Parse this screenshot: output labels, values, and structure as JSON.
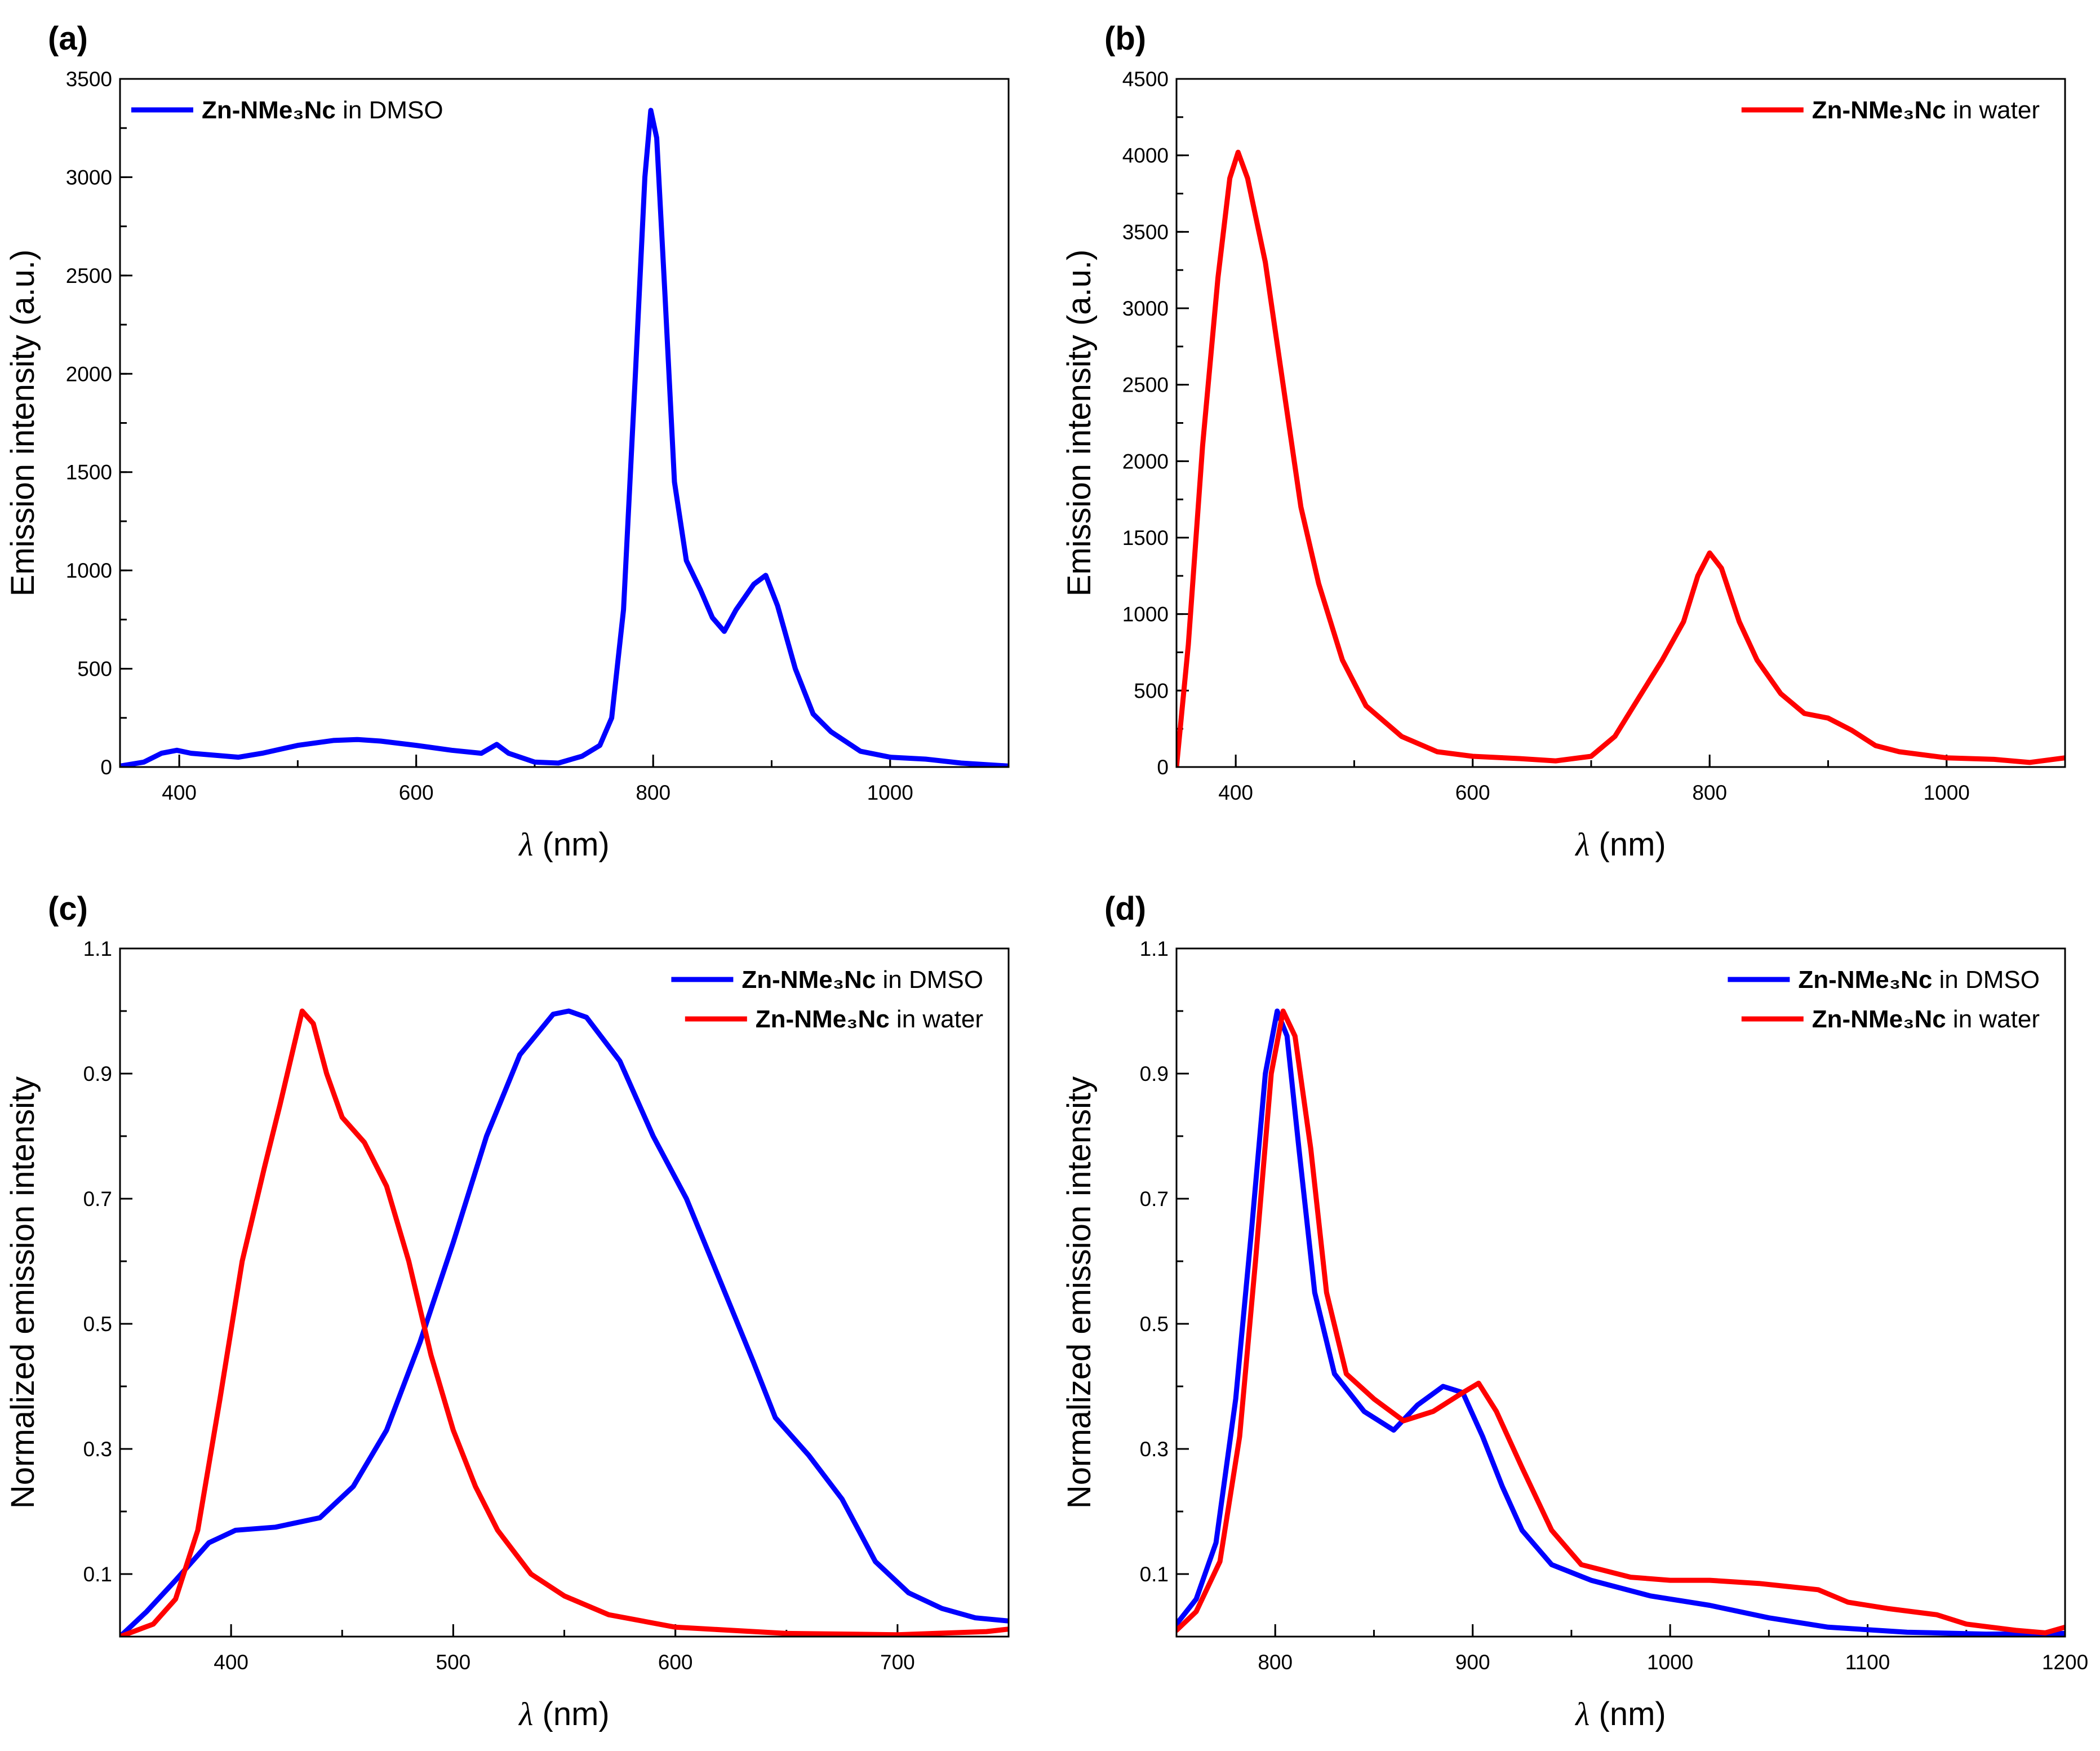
{
  "figure": {
    "panels": [
      "(a)",
      "(b)",
      "(c)",
      "(d)"
    ]
  },
  "chart_data": [
    {
      "id": "a",
      "panel_label": "(a)",
      "type": "line",
      "xlabel_symbol": "λ",
      "xlabel_unit": " (nm)",
      "ylabel": "Emission intensity (a.u.)",
      "xlim": [
        350,
        1100
      ],
      "ylim": [
        0,
        3500
      ],
      "xticks": [
        400,
        600,
        800,
        1000
      ],
      "yticks": [
        0,
        500,
        1000,
        1500,
        2000,
        2500,
        3000,
        3500
      ],
      "legend_position": "top-left",
      "series": [
        {
          "name_bold": "Zn-NMe₃Nc",
          "name_rest": " in DMSO",
          "color": "#0000ff",
          "points": [
            [
              350,
              5
            ],
            [
              370,
              25
            ],
            [
              385,
              70
            ],
            [
              398,
              85
            ],
            [
              410,
              70
            ],
            [
              430,
              60
            ],
            [
              450,
              50
            ],
            [
              470,
              70
            ],
            [
              500,
              110
            ],
            [
              530,
              135
            ],
            [
              550,
              140
            ],
            [
              570,
              132
            ],
            [
              600,
              110
            ],
            [
              630,
              85
            ],
            [
              655,
              70
            ],
            [
              668,
              115
            ],
            [
              678,
              70
            ],
            [
              700,
              25
            ],
            [
              720,
              20
            ],
            [
              740,
              55
            ],
            [
              755,
              110
            ],
            [
              765,
              250
            ],
            [
              775,
              800
            ],
            [
              785,
              2000
            ],
            [
              793,
              3000
            ],
            [
              798,
              3340
            ],
            [
              803,
              3200
            ],
            [
              810,
              2400
            ],
            [
              818,
              1450
            ],
            [
              828,
              1050
            ],
            [
              840,
              900
            ],
            [
              850,
              760
            ],
            [
              860,
              690
            ],
            [
              870,
              800
            ],
            [
              885,
              930
            ],
            [
              895,
              975
            ],
            [
              905,
              820
            ],
            [
              920,
              500
            ],
            [
              935,
              270
            ],
            [
              950,
              180
            ],
            [
              975,
              80
            ],
            [
              1000,
              50
            ],
            [
              1030,
              40
            ],
            [
              1060,
              20
            ],
            [
              1100,
              5
            ]
          ]
        }
      ]
    },
    {
      "id": "b",
      "panel_label": "(b)",
      "type": "line",
      "xlabel_symbol": "λ",
      "xlabel_unit": " (nm)",
      "ylabel": "Emission intensity (a.u.)",
      "xlim": [
        350,
        1100
      ],
      "ylim": [
        0,
        4500
      ],
      "xticks": [
        400,
        600,
        800,
        1000
      ],
      "yticks": [
        0,
        500,
        1000,
        1500,
        2000,
        2500,
        3000,
        3500,
        4000,
        4500
      ],
      "legend_position": "top-right",
      "series": [
        {
          "name_bold": "Zn-NMe₃Nc",
          "name_rest": " in water",
          "color": "#ff0000",
          "points": [
            [
              350,
              0
            ],
            [
              360,
              800
            ],
            [
              372,
              2100
            ],
            [
              385,
              3200
            ],
            [
              395,
              3850
            ],
            [
              402,
              4020
            ],
            [
              410,
              3850
            ],
            [
              425,
              3300
            ],
            [
              440,
              2500
            ],
            [
              455,
              1700
            ],
            [
              470,
              1200
            ],
            [
              490,
              700
            ],
            [
              510,
              400
            ],
            [
              540,
              200
            ],
            [
              570,
              100
            ],
            [
              600,
              70
            ],
            [
              640,
              55
            ],
            [
              670,
              40
            ],
            [
              700,
              70
            ],
            [
              720,
              200
            ],
            [
              740,
              450
            ],
            [
              760,
              700
            ],
            [
              778,
              950
            ],
            [
              790,
              1250
            ],
            [
              800,
              1400
            ],
            [
              810,
              1300
            ],
            [
              825,
              950
            ],
            [
              840,
              700
            ],
            [
              860,
              480
            ],
            [
              880,
              350
            ],
            [
              900,
              320
            ],
            [
              920,
              240
            ],
            [
              940,
              140
            ],
            [
              960,
              100
            ],
            [
              1000,
              60
            ],
            [
              1040,
              50
            ],
            [
              1070,
              30
            ],
            [
              1100,
              60
            ]
          ]
        }
      ]
    },
    {
      "id": "c",
      "panel_label": "(c)",
      "type": "line",
      "xlabel_symbol": "λ",
      "xlabel_unit": " (nm)",
      "ylabel": "Normalized emission intensity",
      "xlim": [
        350,
        750
      ],
      "ylim": [
        0,
        1.1
      ],
      "xticks": [
        400,
        500,
        600,
        700
      ],
      "yticks": [
        0.1,
        0.3,
        0.5,
        0.7,
        0.9,
        1.1
      ],
      "legend_position": "top-right",
      "series": [
        {
          "name_bold": "Zn-NMe₃Nc",
          "name_rest": " in DMSO",
          "color": "#0000ff",
          "points": [
            [
              350,
              0
            ],
            [
              362,
              0.04
            ],
            [
              375,
              0.09
            ],
            [
              390,
              0.15
            ],
            [
              402,
              0.17
            ],
            [
              420,
              0.175
            ],
            [
              440,
              0.19
            ],
            [
              455,
              0.24
            ],
            [
              470,
              0.33
            ],
            [
              485,
              0.47
            ],
            [
              500,
              0.63
            ],
            [
              515,
              0.8
            ],
            [
              530,
              0.93
            ],
            [
              545,
              0.995
            ],
            [
              552,
              1.0
            ],
            [
              560,
              0.99
            ],
            [
              575,
              0.92
            ],
            [
              590,
              0.8
            ],
            [
              605,
              0.7
            ],
            [
              620,
              0.57
            ],
            [
              635,
              0.44
            ],
            [
              645,
              0.35
            ],
            [
              660,
              0.29
            ],
            [
              675,
              0.22
            ],
            [
              690,
              0.12
            ],
            [
              705,
              0.07
            ],
            [
              720,
              0.045
            ],
            [
              735,
              0.03
            ],
            [
              750,
              0.025
            ]
          ]
        },
        {
          "name_bold": "Zn-NMe₃Nc",
          "name_rest": " in water",
          "color": "#ff0000",
          "points": [
            [
              350,
              0
            ],
            [
              365,
              0.02
            ],
            [
              375,
              0.06
            ],
            [
              385,
              0.17
            ],
            [
              395,
              0.38
            ],
            [
              405,
              0.6
            ],
            [
              415,
              0.75
            ],
            [
              422,
              0.85
            ],
            [
              428,
              0.94
            ],
            [
              432,
              1.0
            ],
            [
              437,
              0.98
            ],
            [
              443,
              0.9
            ],
            [
              450,
              0.83
            ],
            [
              460,
              0.79
            ],
            [
              470,
              0.72
            ],
            [
              480,
              0.6
            ],
            [
              490,
              0.45
            ],
            [
              500,
              0.33
            ],
            [
              510,
              0.24
            ],
            [
              520,
              0.17
            ],
            [
              535,
              0.1
            ],
            [
              550,
              0.065
            ],
            [
              570,
              0.035
            ],
            [
              600,
              0.015
            ],
            [
              650,
              0.005
            ],
            [
              700,
              0.003
            ],
            [
              740,
              0.008
            ],
            [
              750,
              0.012
            ]
          ]
        }
      ]
    },
    {
      "id": "d",
      "panel_label": "(d)",
      "type": "line",
      "xlabel_symbol": "λ",
      "xlabel_unit": " (nm)",
      "ylabel": "Normalized emission intensity",
      "xlim": [
        750,
        1200
      ],
      "ylim": [
        0,
        1.1
      ],
      "xticks": [
        800,
        900,
        1000,
        1100,
        1200
      ],
      "yticks": [
        0.1,
        0.3,
        0.5,
        0.7,
        0.9,
        1.1
      ],
      "legend_position": "top-right",
      "series": [
        {
          "name_bold": "Zn-NMe₃Nc",
          "name_rest": " in DMSO",
          "color": "#0000ff",
          "points": [
            [
              750,
              0.02
            ],
            [
              760,
              0.06
            ],
            [
              770,
              0.15
            ],
            [
              780,
              0.38
            ],
            [
              788,
              0.65
            ],
            [
              795,
              0.9
            ],
            [
              801,
              1.0
            ],
            [
              806,
              0.96
            ],
            [
              812,
              0.78
            ],
            [
              820,
              0.55
            ],
            [
              830,
              0.42
            ],
            [
              845,
              0.36
            ],
            [
              860,
              0.33
            ],
            [
              872,
              0.37
            ],
            [
              885,
              0.4
            ],
            [
              895,
              0.39
            ],
            [
              905,
              0.32
            ],
            [
              915,
              0.24
            ],
            [
              925,
              0.17
            ],
            [
              940,
              0.115
            ],
            [
              960,
              0.09
            ],
            [
              990,
              0.065
            ],
            [
              1020,
              0.05
            ],
            [
              1050,
              0.03
            ],
            [
              1080,
              0.015
            ],
            [
              1120,
              0.007
            ],
            [
              1160,
              0.004
            ],
            [
              1200,
              0.005
            ]
          ]
        },
        {
          "name_bold": "Zn-NMe₃Nc",
          "name_rest": " in water",
          "color": "#ff0000",
          "points": [
            [
              750,
              0.01
            ],
            [
              760,
              0.04
            ],
            [
              772,
              0.12
            ],
            [
              782,
              0.32
            ],
            [
              790,
              0.6
            ],
            [
              798,
              0.9
            ],
            [
              804,
              1.0
            ],
            [
              810,
              0.96
            ],
            [
              818,
              0.78
            ],
            [
              826,
              0.55
            ],
            [
              836,
              0.42
            ],
            [
              850,
              0.38
            ],
            [
              865,
              0.345
            ],
            [
              880,
              0.36
            ],
            [
              895,
              0.39
            ],
            [
              903,
              0.405
            ],
            [
              912,
              0.36
            ],
            [
              925,
              0.27
            ],
            [
              940,
              0.17
            ],
            [
              955,
              0.115
            ],
            [
              980,
              0.095
            ],
            [
              1000,
              0.09
            ],
            [
              1020,
              0.09
            ],
            [
              1045,
              0.085
            ],
            [
              1075,
              0.075
            ],
            [
              1090,
              0.055
            ],
            [
              1110,
              0.045
            ],
            [
              1135,
              0.035
            ],
            [
              1150,
              0.02
            ],
            [
              1175,
              0.01
            ],
            [
              1190,
              0.006
            ],
            [
              1200,
              0.015
            ]
          ]
        }
      ]
    }
  ]
}
